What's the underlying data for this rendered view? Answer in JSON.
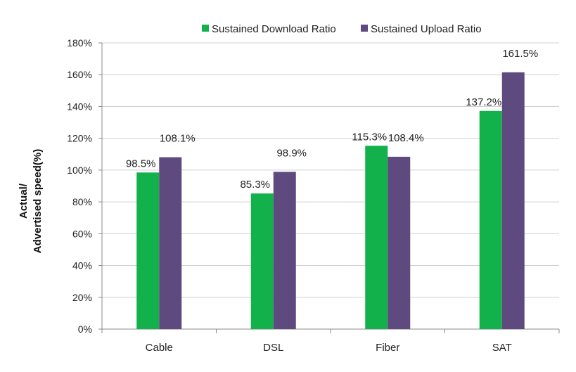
{
  "chart_data": {
    "type": "bar",
    "categories": [
      "Cable",
      "DSL",
      "Fiber",
      "SAT"
    ],
    "series": [
      {
        "name": "Sustained Download Ratio",
        "values": [
          98.5,
          85.3,
          115.3,
          137.2
        ],
        "labels": [
          "98.5%",
          "85.3%",
          "115.3%",
          "137.2%"
        ],
        "color": "#12b14b"
      },
      {
        "name": "Sustained Upload Ratio",
        "values": [
          108.1,
          98.9,
          108.4,
          161.5
        ],
        "labels": [
          "108.1%",
          "98.9%",
          "108.4%",
          "161.5%"
        ],
        "color": "#5e4a7e"
      }
    ],
    "ylabel_line1": "Actual/",
    "ylabel_line2": "Advertised speed(%)",
    "ylim": [
      0,
      180
    ],
    "yticks": [
      "0%",
      "20%",
      "40%",
      "60%",
      "80%",
      "100%",
      "120%",
      "140%",
      "160%",
      "180%"
    ],
    "grid": true,
    "legend_position": "top"
  }
}
